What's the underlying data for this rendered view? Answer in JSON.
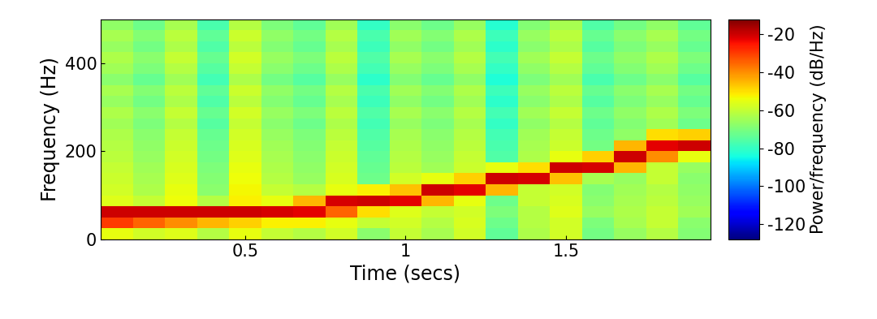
{
  "chart_data": {
    "type": "heatmap",
    "xlabel": "Time (secs)",
    "ylabel": "Frequency (Hz)",
    "x": [
      0.1,
      0.2,
      0.3,
      0.4,
      0.5,
      0.6,
      0.7,
      0.8,
      0.9,
      1.0,
      1.1,
      1.2,
      1.3,
      1.4,
      1.5,
      1.6,
      1.7,
      1.8,
      1.9
    ],
    "y": [
      12.5,
      37.5,
      62.5,
      87.5,
      112.5,
      137.5,
      162.5,
      187.5,
      212.5,
      237.5,
      262.5,
      287.5,
      312.5,
      337.5,
      362.5,
      387.5,
      412.5,
      437.5,
      462.5,
      487.5
    ],
    "cells": [
      [
        -55,
        -58,
        -56,
        -62,
        -55,
        -60,
        -62,
        -58,
        -68,
        -60,
        -64,
        -58,
        -74,
        -63,
        -58,
        -71,
        -66,
        -62,
        -69
      ],
      [
        -30,
        -35,
        -40,
        -45,
        -48,
        -52,
        -52,
        -55,
        -60,
        -58,
        -62,
        -57,
        -72,
        -62,
        -58,
        -70,
        -64,
        -60,
        -68
      ],
      [
        -20,
        -20,
        -20,
        -20,
        -20,
        -21,
        -22,
        -35,
        -50,
        -56,
        -60,
        -58,
        -70,
        -62,
        -56,
        -66,
        -63,
        -60,
        -65
      ],
      [
        -56,
        -60,
        -54,
        -62,
        -52,
        -55,
        -45,
        -21,
        -20,
        -22,
        -45,
        -55,
        -72,
        -60,
        -57,
        -68,
        -64,
        -61,
        -66
      ],
      [
        -58,
        -63,
        -55,
        -68,
        -53,
        -60,
        -62,
        -55,
        -52,
        -46,
        -20,
        -22,
        -45,
        -60,
        -58,
        -69,
        -65,
        -62,
        -67
      ],
      [
        -59,
        -64,
        -56,
        -69,
        -54,
        -62,
        -66,
        -57,
        -72,
        -58,
        -55,
        -48,
        -20,
        -21,
        -46,
        -64,
        -66,
        -60,
        -68
      ],
      [
        -60,
        -65,
        -57,
        -70,
        -55,
        -63,
        -67,
        -58,
        -73,
        -61,
        -65,
        -59,
        -55,
        -50,
        -20,
        -21,
        -45,
        -60,
        -66
      ],
      [
        -61,
        -66,
        -58,
        -71,
        -56,
        -64,
        -68,
        -59,
        -74,
        -62,
        -66,
        -60,
        -76,
        -63,
        -55,
        -48,
        -20,
        -40,
        -55
      ],
      [
        -62,
        -67,
        -59,
        -72,
        -57,
        -65,
        -69,
        -60,
        -75,
        -63,
        -67,
        -61,
        -77,
        -64,
        -59,
        -71,
        -45,
        -22,
        -20
      ],
      [
        -63,
        -68,
        -60,
        -73,
        -58,
        -66,
        -70,
        -61,
        -76,
        -64,
        -68,
        -62,
        -78,
        -65,
        -60,
        -72,
        -67,
        -50,
        -48
      ],
      [
        -65,
        -70,
        -62,
        -75,
        -60,
        -68,
        -72,
        -63,
        -78,
        -66,
        -70,
        -64,
        -80,
        -67,
        -62,
        -74,
        -69,
        -65,
        -72
      ],
      [
        -63,
        -68,
        -60,
        -73,
        -58,
        -66,
        -70,
        -61,
        -76,
        -64,
        -68,
        -62,
        -78,
        -65,
        -60,
        -72,
        -67,
        -63,
        -70
      ],
      [
        -66,
        -71,
        -63,
        -76,
        -61,
        -69,
        -73,
        -64,
        -79,
        -67,
        -71,
        -65,
        -81,
        -68,
        -63,
        -75,
        -70,
        -66,
        -73
      ],
      [
        -64,
        -69,
        -61,
        -74,
        -59,
        -67,
        -71,
        -62,
        -77,
        -65,
        -69,
        -63,
        -79,
        -66,
        -61,
        -73,
        -68,
        -64,
        -71
      ],
      [
        -68,
        -73,
        -65,
        -78,
        -63,
        -71,
        -75,
        -66,
        -81,
        -69,
        -73,
        -67,
        -83,
        -70,
        -65,
        -77,
        -72,
        -68,
        -75
      ],
      [
        -65,
        -70,
        -62,
        -75,
        -60,
        -68,
        -72,
        -63,
        -78,
        -66,
        -70,
        -64,
        -80,
        -67,
        -62,
        -74,
        -69,
        -65,
        -72
      ],
      [
        -63,
        -68,
        -60,
        -73,
        -58,
        -66,
        -70,
        -61,
        -76,
        -64,
        -68,
        -62,
        -78,
        -65,
        -60,
        -72,
        -67,
        -63,
        -70
      ],
      [
        -66,
        -71,
        -63,
        -76,
        -61,
        -69,
        -73,
        -64,
        -79,
        -67,
        -71,
        -65,
        -81,
        -68,
        -63,
        -75,
        -70,
        -66,
        -73
      ],
      [
        -64,
        -69,
        -61,
        -74,
        -59,
        -67,
        -71,
        -62,
        -77,
        -65,
        -69,
        -63,
        -79,
        -66,
        -61,
        -73,
        -68,
        -64,
        -71
      ],
      [
        -67,
        -72,
        -64,
        -77,
        -62,
        -70,
        -74,
        -65,
        -80,
        -68,
        -72,
        -66,
        -82,
        -69,
        -64,
        -76,
        -71,
        -67,
        -74
      ]
    ],
    "xlim": [
      0.05,
      1.95
    ],
    "ylim": [
      0,
      500
    ],
    "xticks": [
      0.5,
      1,
      1.5
    ],
    "yticks": [
      0,
      200,
      400
    ],
    "color": "jet",
    "colorbar_label": "Power/frequency (dB/Hz)",
    "colorbar_range": [
      -128,
      -12
    ],
    "colorbar_ticks": [
      -20,
      -40,
      -60,
      -80,
      -100,
      -120
    ]
  }
}
